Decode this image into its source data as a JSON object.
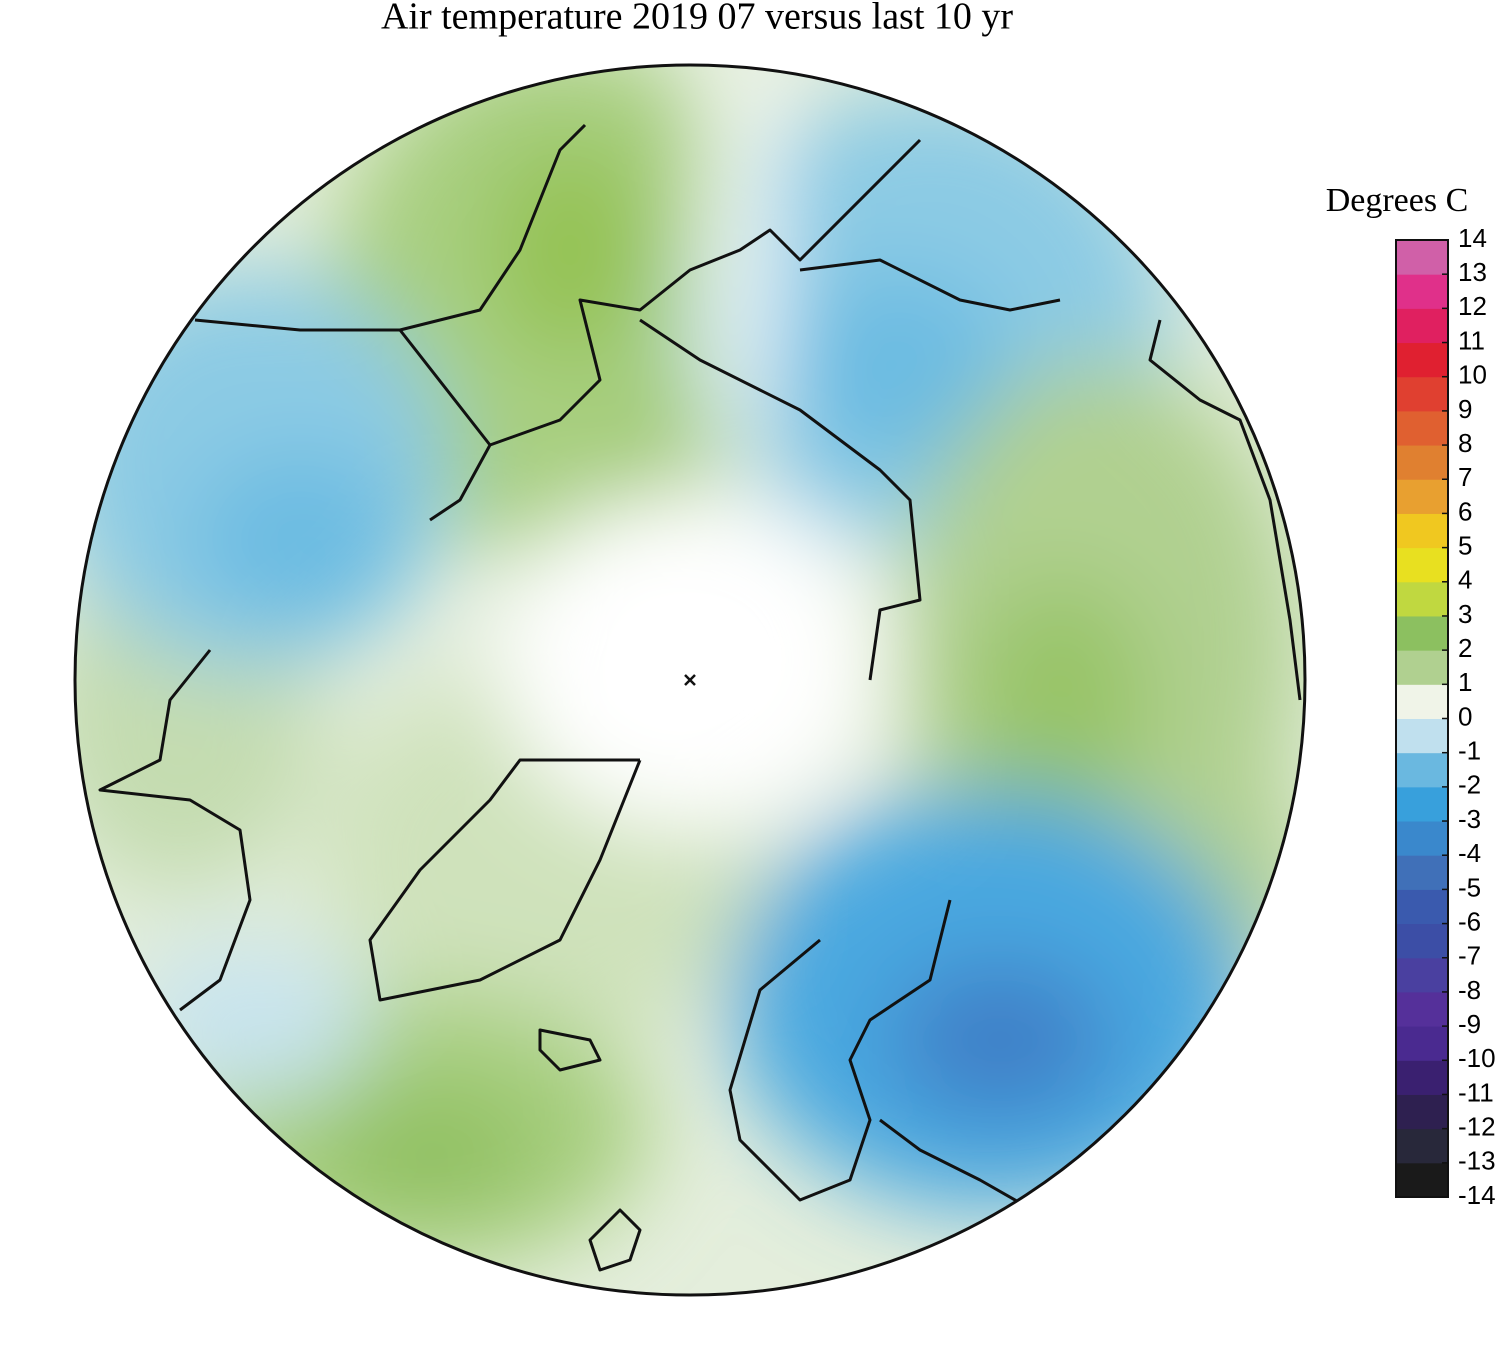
{
  "title": "Air temperature 2019 07 versus last 10 yr",
  "colorbar": {
    "label": "Degrees C",
    "range": [
      -14,
      14
    ],
    "ticks": [
      14,
      13,
      12,
      11,
      10,
      9,
      8,
      7,
      6,
      5,
      4,
      3,
      2,
      1,
      0,
      -1,
      -2,
      -3,
      -4,
      -5,
      -6,
      -7,
      -8,
      -9,
      -10,
      -11,
      -12,
      -13,
      -14
    ],
    "colors": [
      "#1a1a1a",
      "#28283a",
      "#2e2050",
      "#3a2070",
      "#4a2a90",
      "#55309a",
      "#4a40a0",
      "#3c4ea6",
      "#3a5aae",
      "#4070b8",
      "#3a88cc",
      "#38a0dc",
      "#6ab8e0",
      "#c0e0ee",
      "#f0f4e8",
      "#b0d090",
      "#8cc060",
      "#c0d840",
      "#e8e020",
      "#f0c820",
      "#e8a030",
      "#e08030",
      "#e06030",
      "#e04030",
      "#e02030",
      "#e02060",
      "#e0308a",
      "#d060a8"
    ]
  }
}
